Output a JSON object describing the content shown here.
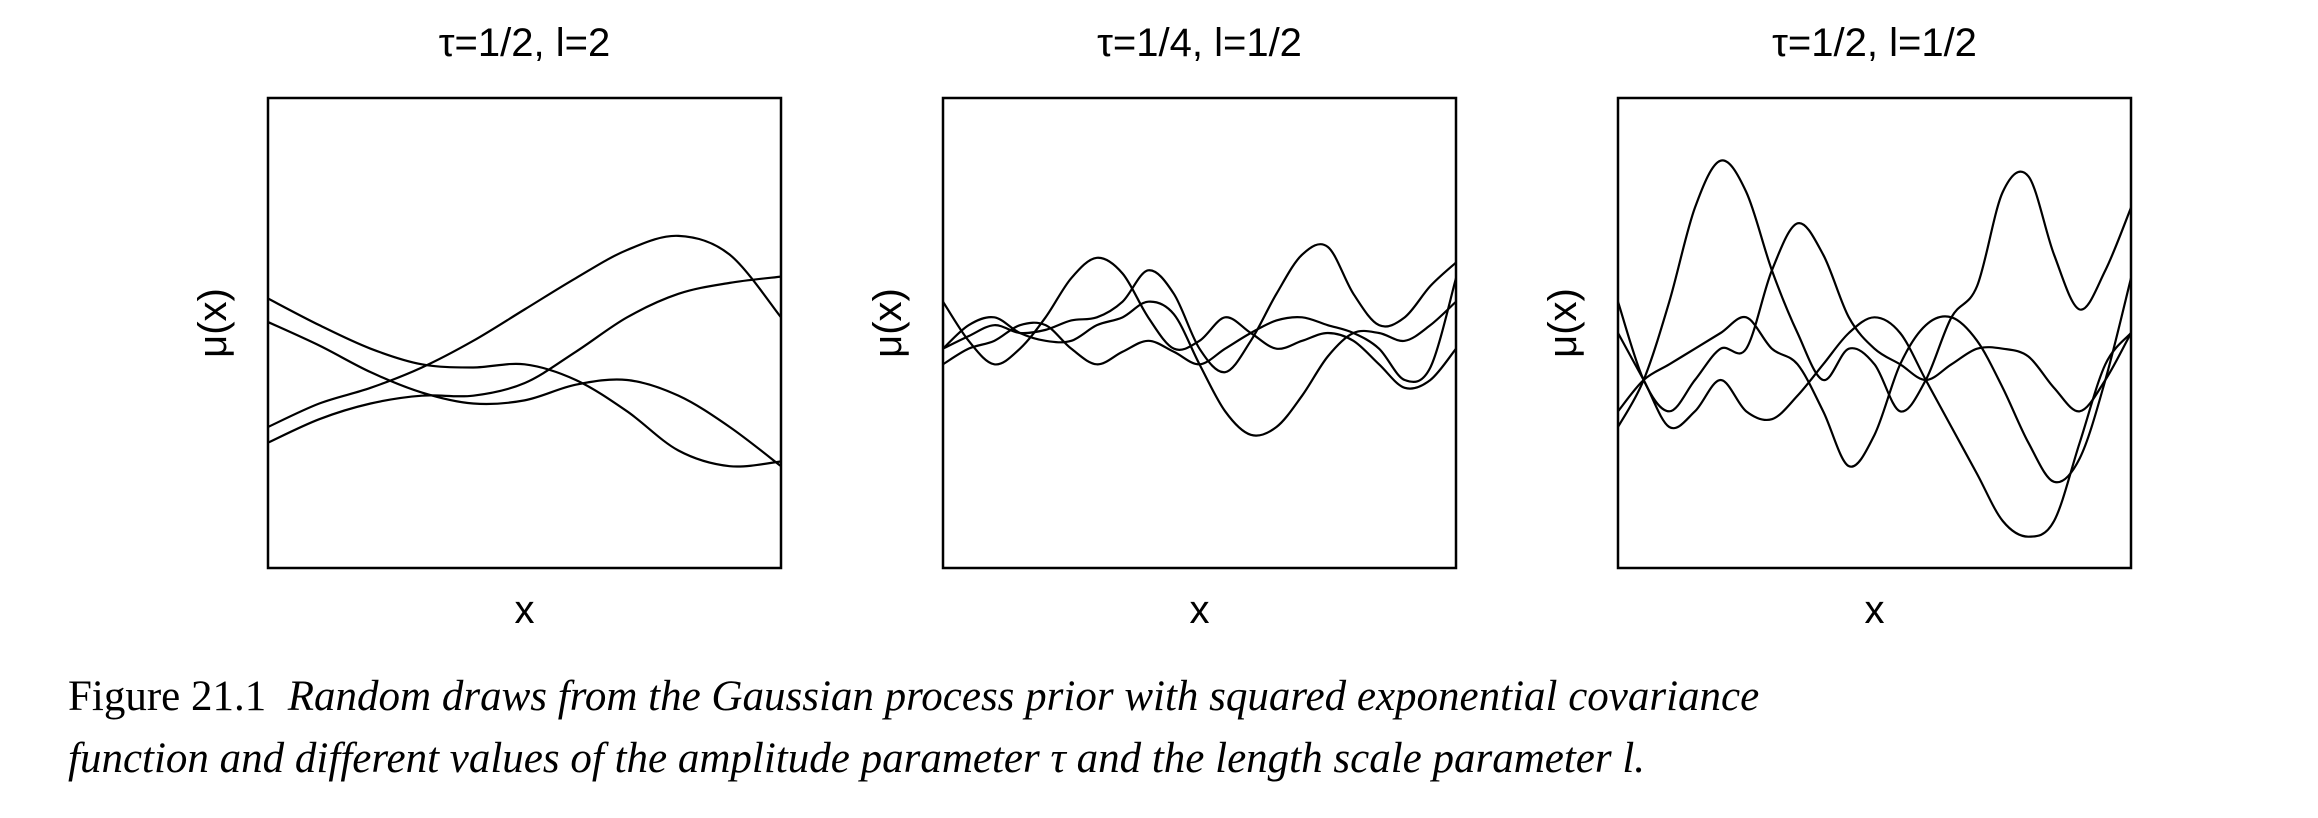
{
  "chart_data": [
    {
      "type": "line",
      "title": "τ=1/2, l=2",
      "xlabel": "x",
      "ylabel": "μ(x)",
      "xlim": [
        0,
        1
      ],
      "ylim": [
        -1.5,
        1.5
      ],
      "axis_ticks": false,
      "series": [
        {
          "x": [
            0,
            0.1,
            0.2,
            0.3,
            0.4,
            0.5,
            0.6,
            0.7,
            0.8,
            0.9,
            1.0
          ],
          "values": [
            0.22,
            0.05,
            -0.1,
            -0.2,
            -0.22,
            -0.2,
            -0.3,
            -0.5,
            -0.75,
            -0.85,
            -0.82
          ],
          "color": "#000000"
        },
        {
          "x": [
            0,
            0.1,
            0.2,
            0.3,
            0.4,
            0.5,
            0.6,
            0.7,
            0.8,
            0.9,
            1.0
          ],
          "values": [
            0.07,
            -0.08,
            -0.25,
            -0.38,
            -0.45,
            -0.43,
            -0.33,
            -0.3,
            -0.4,
            -0.6,
            -0.85
          ],
          "color": "#000000"
        },
        {
          "x": [
            0,
            0.1,
            0.2,
            0.3,
            0.4,
            0.5,
            0.6,
            0.7,
            0.8,
            0.9,
            1.0
          ],
          "values": [
            -0.6,
            -0.45,
            -0.35,
            -0.22,
            -0.05,
            0.15,
            0.35,
            0.53,
            0.62,
            0.5,
            0.1
          ],
          "color": "#000000"
        },
        {
          "x": [
            0,
            0.1,
            0.2,
            0.3,
            0.4,
            0.5,
            0.6,
            0.7,
            0.8,
            0.9,
            1.0
          ],
          "values": [
            -0.7,
            -0.55,
            -0.45,
            -0.4,
            -0.4,
            -0.32,
            -0.12,
            0.1,
            0.25,
            0.32,
            0.36
          ],
          "color": "#000000"
        }
      ]
    },
    {
      "type": "line",
      "title": "τ=1/4, l=1/2",
      "xlabel": "x",
      "ylabel": "μ(x)",
      "xlim": [
        0,
        1
      ],
      "ylim": [
        -1.5,
        1.5
      ],
      "axis_ticks": false,
      "series": [
        {
          "x": [
            0,
            0.05,
            0.1,
            0.15,
            0.2,
            0.25,
            0.3,
            0.35,
            0.4,
            0.45,
            0.5,
            0.55,
            0.6,
            0.65,
            0.7,
            0.75,
            0.8,
            0.85,
            0.9,
            0.95,
            1.0
          ],
          "values": [
            0.2,
            -0.05,
            -0.2,
            -0.1,
            0.1,
            0.35,
            0.48,
            0.38,
            0.1,
            -0.1,
            -0.05,
            0.1,
            0.0,
            -0.1,
            -0.05,
            0.0,
            -0.05,
            -0.2,
            -0.35,
            -0.3,
            -0.1
          ],
          "color": "#000000"
        },
        {
          "x": [
            0,
            0.05,
            0.1,
            0.15,
            0.2,
            0.25,
            0.3,
            0.35,
            0.4,
            0.45,
            0.5,
            0.55,
            0.6,
            0.65,
            0.7,
            0.75,
            0.8,
            0.85,
            0.9,
            0.95,
            1.0
          ],
          "values": [
            -0.1,
            0.05,
            0.1,
            0.0,
            -0.05,
            -0.05,
            0.05,
            0.1,
            0.2,
            0.12,
            -0.2,
            -0.5,
            -0.65,
            -0.6,
            -0.4,
            -0.15,
            0.0,
            0.0,
            -0.05,
            0.05,
            0.2
          ],
          "color": "#000000"
        },
        {
          "x": [
            0,
            0.05,
            0.1,
            0.15,
            0.2,
            0.25,
            0.3,
            0.35,
            0.4,
            0.45,
            0.5,
            0.55,
            0.6,
            0.65,
            0.7,
            0.75,
            0.8,
            0.85,
            0.9,
            0.95,
            1.0
          ],
          "values": [
            -0.2,
            -0.1,
            -0.05,
            0.05,
            0.05,
            -0.1,
            -0.2,
            -0.12,
            -0.05,
            -0.12,
            -0.2,
            -0.1,
            0.0,
            0.08,
            0.1,
            0.05,
            0.0,
            -0.1,
            -0.3,
            -0.22,
            0.35
          ],
          "color": "#000000"
        },
        {
          "x": [
            0,
            0.05,
            0.1,
            0.15,
            0.2,
            0.25,
            0.3,
            0.35,
            0.4,
            0.45,
            0.5,
            0.55,
            0.6,
            0.65,
            0.7,
            0.75,
            0.8,
            0.85,
            0.9,
            0.95,
            1.0
          ],
          "values": [
            -0.1,
            -0.02,
            0.05,
            0.0,
            0.02,
            0.08,
            0.1,
            0.2,
            0.4,
            0.25,
            -0.1,
            -0.25,
            -0.05,
            0.25,
            0.5,
            0.55,
            0.25,
            0.05,
            0.1,
            0.3,
            0.45
          ],
          "color": "#000000"
        }
      ]
    },
    {
      "type": "line",
      "title": "τ=1/2, l=1/2",
      "xlabel": "x",
      "ylabel": "μ(x)",
      "xlim": [
        0,
        1
      ],
      "ylim": [
        -1.5,
        1.5
      ],
      "axis_ticks": false,
      "series": [
        {
          "x": [
            0,
            0.05,
            0.1,
            0.15,
            0.2,
            0.25,
            0.3,
            0.35,
            0.4,
            0.45,
            0.5,
            0.55,
            0.6,
            0.65,
            0.7,
            0.75,
            0.8,
            0.85,
            0.9,
            0.95,
            1.0
          ],
          "values": [
            -0.6,
            -0.3,
            0.2,
            0.8,
            1.1,
            0.9,
            0.4,
            0.0,
            -0.3,
            -0.1,
            -0.2,
            -0.5,
            -0.3,
            0.1,
            0.3,
            0.9,
            1.0,
            0.5,
            0.15,
            0.4,
            0.8
          ],
          "color": "#000000"
        },
        {
          "x": [
            0,
            0.05,
            0.1,
            0.15,
            0.2,
            0.25,
            0.3,
            0.35,
            0.4,
            0.45,
            0.5,
            0.55,
            0.6,
            0.65,
            0.7,
            0.75,
            0.8,
            0.85,
            0.9,
            0.95,
            1.0
          ],
          "values": [
            0.2,
            -0.3,
            -0.5,
            -0.3,
            -0.1,
            -0.1,
            0.4,
            0.7,
            0.5,
            0.1,
            -0.1,
            -0.2,
            -0.3,
            -0.2,
            -0.1,
            -0.1,
            -0.15,
            -0.35,
            -0.5,
            -0.3,
            0.0
          ],
          "color": "#000000"
        },
        {
          "x": [
            0,
            0.05,
            0.1,
            0.15,
            0.2,
            0.25,
            0.3,
            0.35,
            0.4,
            0.45,
            0.5,
            0.55,
            0.6,
            0.65,
            0.7,
            0.75,
            0.8,
            0.85,
            0.9,
            0.95,
            1.0
          ],
          "values": [
            -0.5,
            -0.3,
            -0.2,
            -0.1,
            0.0,
            0.1,
            -0.1,
            -0.2,
            -0.5,
            -0.85,
            -0.65,
            -0.2,
            0.05,
            0.1,
            -0.05,
            -0.35,
            -0.7,
            -0.95,
            -0.8,
            -0.3,
            0.35
          ],
          "color": "#000000"
        },
        {
          "x": [
            0,
            0.05,
            0.1,
            0.15,
            0.2,
            0.25,
            0.3,
            0.35,
            0.4,
            0.45,
            0.5,
            0.55,
            0.6,
            0.65,
            0.7,
            0.75,
            0.8,
            0.85,
            0.9,
            0.95,
            1.0
          ],
          "values": [
            0.0,
            -0.3,
            -0.6,
            -0.5,
            -0.3,
            -0.5,
            -0.55,
            -0.4,
            -0.2,
            0.0,
            0.1,
            0.0,
            -0.3,
            -0.6,
            -0.9,
            -1.2,
            -1.3,
            -1.2,
            -0.7,
            -0.2,
            0.0
          ],
          "color": "#000000"
        }
      ]
    }
  ],
  "caption": {
    "label": "Figure 21.1",
    "line1": "Random draws from the Gaussian process prior with squared exponential covariance",
    "line2": "function and different values of the amplitude parameter τ and the length scale parameter l."
  }
}
